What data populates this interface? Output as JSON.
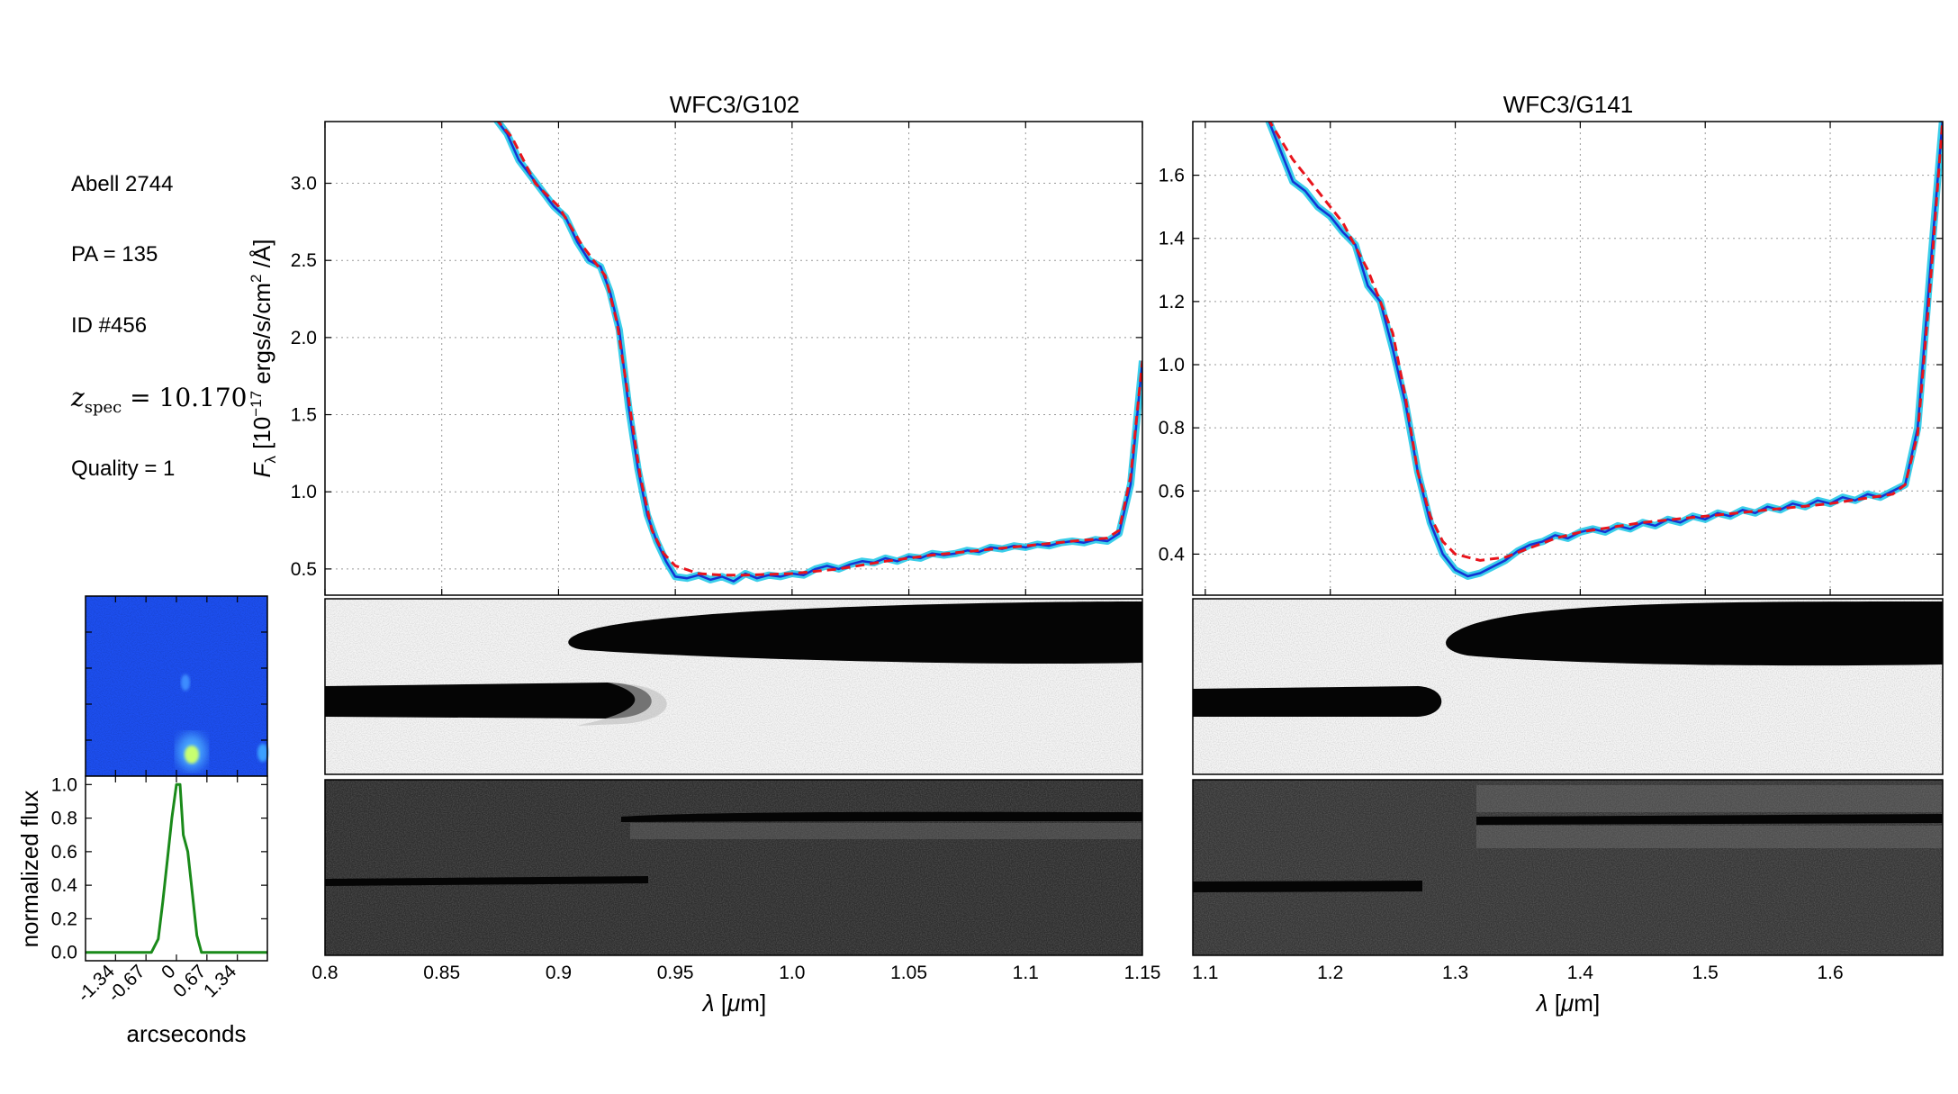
{
  "info": {
    "field": "Abell 2744",
    "pa": "PA = 135",
    "id": "ID #456",
    "z_symbol": "z",
    "z_sub": "spec",
    "z_value": " = 10.170",
    "quality": "Quality = 1"
  },
  "colors": {
    "model": "#e8141c",
    "data": "#1432d4",
    "error_band": "#18c6e6",
    "profile": "#1a8a1a",
    "thumb_bg": "#1c4ef0"
  },
  "chart_data": [
    {
      "type": "line",
      "title": "WFC3/G102",
      "xlabel": "λ [μm]",
      "ylabel_parts": [
        "F",
        "λ",
        " [10",
        "−17",
        " ergs/s/cm",
        "2",
        " /Å]"
      ],
      "xlim": [
        0.8,
        1.15
      ],
      "ylim": [
        0.33,
        3.4
      ],
      "xticks": [
        0.8,
        0.85,
        0.9,
        0.95,
        1.0,
        1.05,
        1.1,
        1.15
      ],
      "xtick_labels": [
        "0.8",
        "0.85",
        "0.9",
        "0.95",
        "1.0",
        "1.05",
        "1.1",
        "1.15"
      ],
      "yticks": [
        0.5,
        1.0,
        1.5,
        2.0,
        2.5,
        3.0
      ],
      "ytick_labels": [
        "0.5",
        "1.0",
        "1.5",
        "2.0",
        "2.5",
        "3.0"
      ],
      "grid": true,
      "series": [
        {
          "role": "model",
          "style": "dashed",
          "x": [
            0.873,
            0.88,
            0.89,
            0.9,
            0.91,
            0.92,
            0.925,
            0.93,
            0.935,
            0.94,
            0.945,
            0.95,
            0.96,
            0.97,
            0.98,
            1.0,
            1.02,
            1.04,
            1.06,
            1.08,
            1.1,
            1.12,
            1.135,
            1.14,
            1.145,
            1.15
          ],
          "y": [
            3.42,
            3.3,
            3.0,
            2.85,
            2.6,
            2.4,
            2.1,
            1.6,
            1.1,
            0.75,
            0.6,
            0.52,
            0.47,
            0.46,
            0.46,
            0.47,
            0.5,
            0.55,
            0.59,
            0.62,
            0.65,
            0.68,
            0.7,
            0.75,
            1.1,
            1.85
          ]
        },
        {
          "role": "data",
          "style": "solid",
          "x": [
            0.873,
            0.878,
            0.883,
            0.888,
            0.893,
            0.898,
            0.903,
            0.908,
            0.913,
            0.918,
            0.922,
            0.926,
            0.93,
            0.934,
            0.938,
            0.942,
            0.946,
            0.95,
            0.955,
            0.96,
            0.965,
            0.97,
            0.975,
            0.98,
            0.985,
            0.99,
            0.995,
            1.0,
            1.005,
            1.01,
            1.015,
            1.02,
            1.025,
            1.03,
            1.035,
            1.04,
            1.045,
            1.05,
            1.055,
            1.06,
            1.065,
            1.07,
            1.075,
            1.08,
            1.085,
            1.09,
            1.095,
            1.1,
            1.105,
            1.11,
            1.115,
            1.12,
            1.125,
            1.13,
            1.135,
            1.14,
            1.145,
            1.15
          ],
          "y": [
            3.42,
            3.32,
            3.15,
            3.05,
            2.95,
            2.85,
            2.78,
            2.62,
            2.5,
            2.46,
            2.3,
            2.05,
            1.55,
            1.15,
            0.85,
            0.68,
            0.55,
            0.45,
            0.44,
            0.46,
            0.43,
            0.45,
            0.42,
            0.47,
            0.44,
            0.46,
            0.45,
            0.47,
            0.46,
            0.5,
            0.52,
            0.5,
            0.53,
            0.55,
            0.54,
            0.57,
            0.55,
            0.58,
            0.57,
            0.6,
            0.59,
            0.6,
            0.62,
            0.61,
            0.64,
            0.63,
            0.65,
            0.64,
            0.66,
            0.65,
            0.67,
            0.68,
            0.67,
            0.69,
            0.68,
            0.73,
            1.05,
            1.85
          ]
        }
      ]
    },
    {
      "type": "line",
      "title": "WFC3/G141",
      "xlabel": "λ [μm]",
      "xlim": [
        1.09,
        1.69
      ],
      "ylim": [
        0.27,
        1.77
      ],
      "xticks": [
        1.1,
        1.2,
        1.3,
        1.4,
        1.5,
        1.6
      ],
      "xtick_labels": [
        "1.1",
        "1.2",
        "1.3",
        "1.4",
        "1.5",
        "1.6"
      ],
      "yticks": [
        0.4,
        0.6,
        0.8,
        1.0,
        1.2,
        1.4,
        1.6
      ],
      "ytick_labels": [
        "0.4",
        "0.6",
        "0.8",
        "1.0",
        "1.2",
        "1.4",
        "1.6"
      ],
      "grid": true,
      "series": [
        {
          "role": "model",
          "style": "dashed",
          "x": [
            1.15,
            1.17,
            1.19,
            1.21,
            1.23,
            1.25,
            1.26,
            1.27,
            1.28,
            1.29,
            1.3,
            1.32,
            1.34,
            1.36,
            1.38,
            1.4,
            1.45,
            1.5,
            1.55,
            1.6,
            1.65,
            1.66,
            1.67,
            1.68,
            1.69
          ],
          "y": [
            1.78,
            1.65,
            1.55,
            1.45,
            1.3,
            1.1,
            0.9,
            0.66,
            0.52,
            0.44,
            0.4,
            0.38,
            0.39,
            0.42,
            0.45,
            0.47,
            0.5,
            0.52,
            0.54,
            0.56,
            0.59,
            0.62,
            0.78,
            1.25,
            1.78
          ]
        },
        {
          "role": "data",
          "style": "solid",
          "x": [
            1.15,
            1.16,
            1.17,
            1.18,
            1.19,
            1.2,
            1.21,
            1.22,
            1.23,
            1.24,
            1.25,
            1.26,
            1.27,
            1.28,
            1.29,
            1.3,
            1.31,
            1.32,
            1.33,
            1.34,
            1.35,
            1.36,
            1.37,
            1.38,
            1.39,
            1.4,
            1.41,
            1.42,
            1.43,
            1.44,
            1.45,
            1.46,
            1.47,
            1.48,
            1.49,
            1.5,
            1.51,
            1.52,
            1.53,
            1.54,
            1.55,
            1.56,
            1.57,
            1.58,
            1.59,
            1.6,
            1.61,
            1.62,
            1.63,
            1.64,
            1.65,
            1.66,
            1.67,
            1.68,
            1.69
          ],
          "y": [
            1.78,
            1.68,
            1.58,
            1.55,
            1.5,
            1.47,
            1.42,
            1.38,
            1.25,
            1.2,
            1.05,
            0.88,
            0.66,
            0.5,
            0.4,
            0.35,
            0.33,
            0.34,
            0.36,
            0.38,
            0.41,
            0.43,
            0.44,
            0.46,
            0.45,
            0.47,
            0.48,
            0.47,
            0.49,
            0.48,
            0.5,
            0.49,
            0.51,
            0.5,
            0.52,
            0.51,
            0.53,
            0.52,
            0.54,
            0.53,
            0.55,
            0.54,
            0.56,
            0.55,
            0.57,
            0.56,
            0.58,
            0.57,
            0.59,
            0.58,
            0.6,
            0.62,
            0.8,
            1.3,
            1.78
          ]
        }
      ]
    },
    {
      "type": "line",
      "title": "",
      "xlabel": "arcseconds",
      "ylabel": "normalized flux",
      "xlim": [
        -2.0,
        2.0
      ],
      "ylim": [
        -0.05,
        1.05
      ],
      "xticks": [
        -1.34,
        -0.67,
        0,
        0.67,
        1.34
      ],
      "xtick_labels": [
        "-1.34",
        "-0.67",
        "0",
        "0.67",
        "1.34"
      ],
      "yticks": [
        0.0,
        0.2,
        0.4,
        0.6,
        0.8,
        1.0
      ],
      "ytick_labels": [
        "0.0",
        "0.2",
        "0.4",
        "0.6",
        "0.8",
        "1.0"
      ],
      "grid": false,
      "series": [
        {
          "role": "profile",
          "style": "solid",
          "x": [
            -2.0,
            -0.55,
            -0.4,
            -0.3,
            -0.2,
            -0.1,
            0.0,
            0.08,
            0.15,
            0.25,
            0.35,
            0.45,
            0.55,
            0.7,
            2.0
          ],
          "y": [
            0.0,
            0.0,
            0.08,
            0.3,
            0.55,
            0.8,
            1.0,
            1.0,
            0.7,
            0.6,
            0.35,
            0.1,
            0.0,
            0.0,
            0.0
          ]
        }
      ]
    }
  ]
}
